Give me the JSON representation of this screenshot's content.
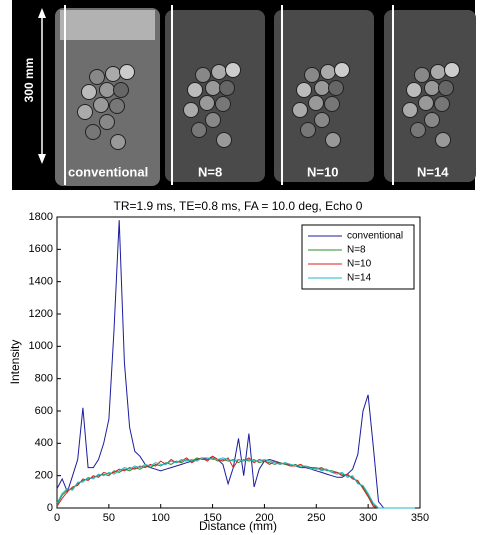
{
  "image_panel": {
    "scale_label": "300 mm",
    "labels": [
      "conventional",
      "N=8",
      "N=10",
      "N=14"
    ]
  },
  "chart_data": {
    "type": "line",
    "title": "TR=1.9 ms, TE=0.8 ms, FA = 10.0 deg, Echo 0",
    "xlabel": "Distance (mm)",
    "ylabel": "Intensity",
    "xlim": [
      0,
      350
    ],
    "xticks": [
      0,
      50,
      100,
      150,
      200,
      250,
      300,
      350
    ],
    "ylim": [
      0,
      1800
    ],
    "yticks": [
      0,
      200,
      400,
      600,
      800,
      1000,
      1200,
      1400,
      1600,
      1800
    ],
    "grid": false,
    "legend": "upper right",
    "x": [
      0,
      5,
      10,
      15,
      20,
      25,
      30,
      35,
      40,
      45,
      50,
      55,
      60,
      65,
      70,
      75,
      80,
      85,
      90,
      95,
      100,
      105,
      110,
      115,
      120,
      125,
      130,
      135,
      140,
      145,
      150,
      155,
      160,
      165,
      170,
      175,
      180,
      185,
      190,
      195,
      200,
      205,
      210,
      215,
      220,
      225,
      230,
      235,
      240,
      245,
      250,
      255,
      260,
      265,
      270,
      275,
      280,
      285,
      290,
      295,
      300,
      305,
      310,
      315,
      320,
      325,
      330,
      335,
      340,
      345
    ],
    "series": [
      {
        "name": "conventional",
        "color": "#1c1c9e",
        "values": [
          120,
          180,
          100,
          200,
          300,
          620,
          250,
          250,
          300,
          400,
          550,
          1100,
          1780,
          900,
          500,
          350,
          320,
          270,
          250,
          240,
          230,
          240,
          250,
          260,
          270,
          280,
          290,
          300,
          310,
          300,
          320,
          300,
          270,
          150,
          250,
          430,
          200,
          460,
          130,
          240,
          290,
          300,
          290,
          280,
          270,
          270,
          260,
          250,
          250,
          240,
          230,
          220,
          210,
          200,
          190,
          190,
          210,
          240,
          330,
          600,
          700,
          380,
          40,
          0,
          0,
          0,
          0,
          0,
          0,
          0
        ]
      },
      {
        "name": "N=8",
        "color": "#2e8b2e",
        "values": [
          20,
          80,
          110,
          120,
          150,
          170,
          180,
          190,
          200,
          210,
          200,
          230,
          220,
          240,
          230,
          250,
          240,
          260,
          250,
          270,
          260,
          280,
          270,
          290,
          280,
          300,
          290,
          310,
          300,
          300,
          310,
          290,
          300,
          290,
          300,
          280,
          300,
          290,
          300,
          280,
          290,
          280,
          270,
          280,
          270,
          260,
          270,
          250,
          260,
          250,
          240,
          250,
          230,
          230,
          220,
          210,
          200,
          190,
          160,
          130,
          80,
          20,
          0,
          0,
          0,
          0,
          0,
          0,
          0,
          0
        ]
      },
      {
        "name": "N=10",
        "color": "#d42020",
        "values": [
          10,
          60,
          100,
          130,
          140,
          180,
          170,
          200,
          190,
          220,
          210,
          220,
          240,
          230,
          250,
          240,
          260,
          250,
          270,
          260,
          290,
          270,
          300,
          280,
          290,
          310,
          280,
          300,
          310,
          290,
          320,
          300,
          290,
          310,
          250,
          300,
          290,
          310,
          280,
          300,
          290,
          270,
          290,
          270,
          280,
          260,
          260,
          270,
          250,
          250,
          250,
          240,
          240,
          220,
          220,
          200,
          210,
          180,
          170,
          120,
          70,
          10,
          0,
          0,
          0,
          0,
          0,
          0,
          0,
          0
        ]
      },
      {
        "name": "N=14",
        "color": "#20b8c8",
        "values": [
          30,
          90,
          120,
          110,
          160,
          160,
          190,
          180,
          210,
          200,
          220,
          210,
          230,
          250,
          240,
          260,
          250,
          270,
          260,
          280,
          270,
          270,
          290,
          280,
          300,
          290,
          300,
          290,
          310,
          310,
          300,
          300,
          310,
          300,
          290,
          300,
          290,
          300,
          290,
          290,
          300,
          290,
          280,
          270,
          280,
          270,
          260,
          260,
          260,
          240,
          250,
          230,
          240,
          220,
          210,
          220,
          190,
          200,
          150,
          140,
          90,
          30,
          0,
          0,
          0,
          0,
          0,
          0,
          0,
          0
        ]
      }
    ]
  }
}
